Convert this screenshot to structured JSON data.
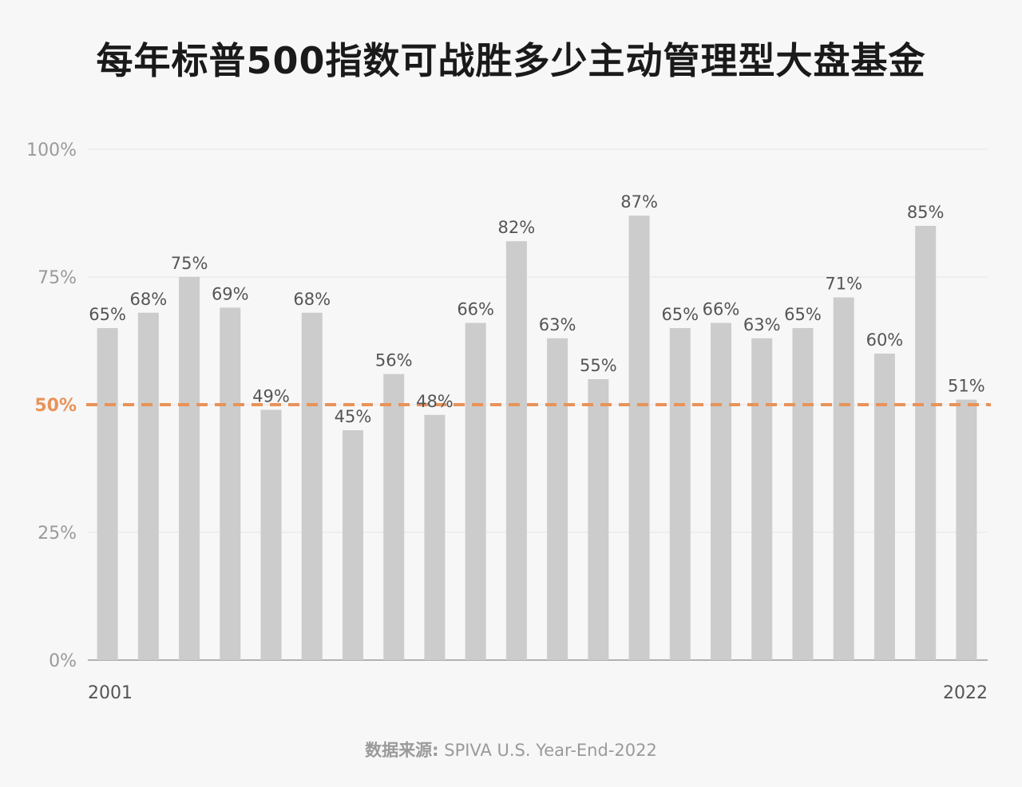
{
  "title": "每年标普500指数可战胜多少主动管理型大盘基金",
  "source_label": "数据来源:",
  "source_text": " SPIVA U.S. Year-End-2022",
  "chart_data": {
    "type": "bar",
    "title": "每年标普500指数可战胜多少主动管理型大盘基金",
    "categories": [
      "2001",
      "2002",
      "2003",
      "2004",
      "2005",
      "2006",
      "2007",
      "2008",
      "2009",
      "2010",
      "2011",
      "2012",
      "2013",
      "2014",
      "2015",
      "2016",
      "2017",
      "2018",
      "2019",
      "2020",
      "2021",
      "2022"
    ],
    "category_labels_shown": [
      "2001",
      "2022"
    ],
    "values": [
      65,
      68,
      75,
      69,
      49,
      68,
      45,
      56,
      48,
      66,
      82,
      63,
      55,
      87,
      65,
      66,
      63,
      65,
      71,
      60,
      85,
      51
    ],
    "value_label_suffix": "%",
    "ylim": [
      0,
      100
    ],
    "yticks": [
      0,
      25,
      50,
      75,
      100
    ],
    "ytick_labels": [
      "0%",
      "25%",
      "50%",
      "75%",
      "100%"
    ],
    "reference_line": {
      "value": 50,
      "label": "50%",
      "color": "#e8935a",
      "style": "dashed"
    },
    "bar_color": "#cccccc",
    "grid": true,
    "legend": "none"
  }
}
